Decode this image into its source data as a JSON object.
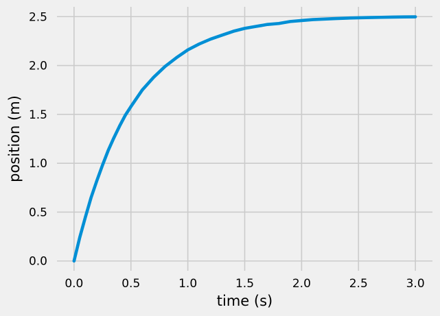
{
  "chart_data": {
    "type": "line",
    "title": "",
    "xlabel": "time (s)",
    "ylabel": "position (m)",
    "xlim": [
      -0.15,
      3.15
    ],
    "ylim": [
      -0.1,
      2.6
    ],
    "grid": true,
    "x_ticks": [
      0.0,
      0.5,
      1.0,
      1.5,
      2.0,
      2.5,
      3.0
    ],
    "x_tick_labels": [
      "0.0",
      "0.5",
      "1.0",
      "1.5",
      "2.0",
      "2.5",
      "3.0"
    ],
    "y_ticks": [
      0.0,
      0.5,
      1.0,
      1.5,
      2.0,
      2.5
    ],
    "y_tick_labels": [
      "0.0",
      "0.5",
      "1.0",
      "1.5",
      "2.0",
      "2.5"
    ],
    "series": [
      {
        "color": "#008fd5",
        "x": [
          0.0,
          0.05,
          0.1,
          0.15,
          0.2,
          0.25,
          0.3,
          0.35,
          0.4,
          0.45,
          0.5,
          0.6,
          0.7,
          0.8,
          0.9,
          1.0,
          1.1,
          1.2,
          1.3,
          1.4,
          1.5,
          1.6,
          1.7,
          1.8,
          1.9,
          2.0,
          2.1,
          2.2,
          2.3,
          2.4,
          2.5,
          2.6,
          2.7,
          2.8,
          2.9,
          3.0
        ],
        "y": [
          0.0,
          0.24,
          0.45,
          0.65,
          0.82,
          0.98,
          1.13,
          1.26,
          1.38,
          1.49,
          1.58,
          1.75,
          1.88,
          1.99,
          2.08,
          2.16,
          2.22,
          2.27,
          2.31,
          2.35,
          2.38,
          2.4,
          2.42,
          2.43,
          2.45,
          2.46,
          2.47,
          2.475,
          2.48,
          2.485,
          2.488,
          2.491,
          2.493,
          2.495,
          2.497,
          2.498
        ]
      }
    ]
  }
}
